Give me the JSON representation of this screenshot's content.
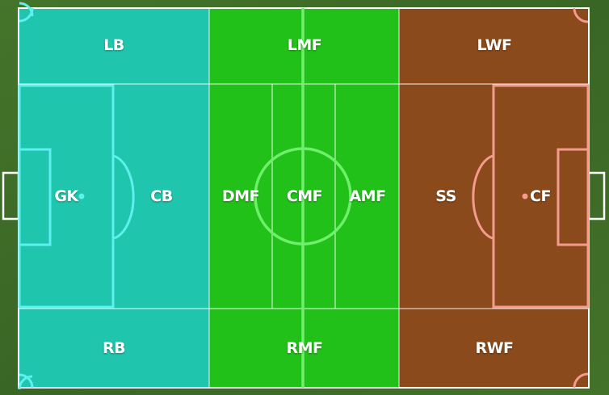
{
  "colors": {
    "grass": "#3d6b27",
    "defense_zone": "#20c5ad",
    "midfield_zone": "#22c11a",
    "attack_zone": "#8b4a1c",
    "defense_line": "#5ef0ee",
    "midfield_line": "#6ff06a",
    "attack_line": "#f59a8e",
    "white_line": "#ffffff"
  },
  "positions": {
    "lb": "LB",
    "lmf": "LMF",
    "lwf": "LWF",
    "gk": "GK",
    "cb": "CB",
    "dmf": "DMF",
    "cmf": "CMF",
    "amf": "AMF",
    "ss": "SS",
    "cf": "CF",
    "rb": "RB",
    "rmf": "RMF",
    "rwf": "RWF"
  }
}
